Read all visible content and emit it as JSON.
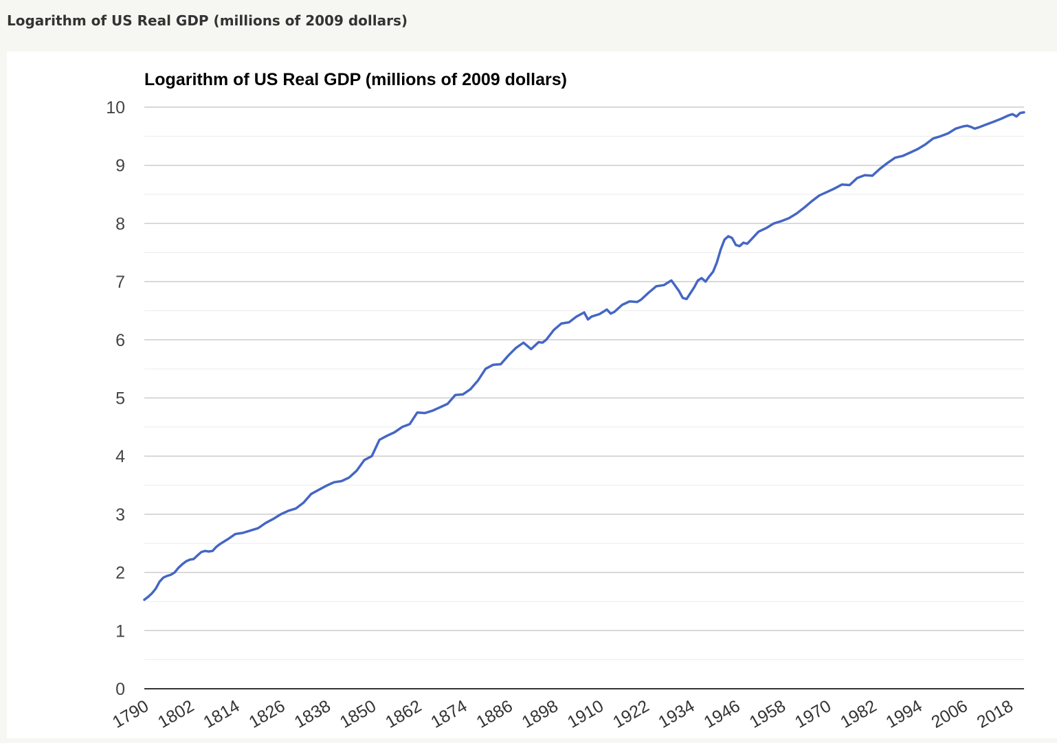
{
  "page": {
    "header_title": "Logarithm of US Real GDP (millions of 2009 dollars)"
  },
  "chart_data": {
    "type": "line",
    "title": "Logarithm of US Real GDP (millions of 2009 dollars)",
    "xlabel": "",
    "ylabel": "",
    "xlim": [
      1790,
      2022
    ],
    "ylim": [
      0,
      10
    ],
    "y_ticks": [
      0,
      1,
      2,
      3,
      4,
      5,
      6,
      7,
      8,
      9,
      10
    ],
    "y_tick_labels": [
      "0",
      "1",
      "2",
      "3",
      "4",
      "5",
      "6",
      "7",
      "8",
      "9",
      "10"
    ],
    "x_ticks": [
      1790,
      1802,
      1814,
      1826,
      1838,
      1850,
      1862,
      1874,
      1886,
      1898,
      1910,
      1922,
      1934,
      1946,
      1958,
      1970,
      1982,
      1994,
      2006,
      2018
    ],
    "x_tick_labels": [
      "1790",
      "1802",
      "1814",
      "1826",
      "1838",
      "1850",
      "1862",
      "1874",
      "1886",
      "1898",
      "1910",
      "1922",
      "1934",
      "1946",
      "1958",
      "1970",
      "1982",
      "1994",
      "2006",
      "2018"
    ],
    "grid": true,
    "minor_grid_step": 0.5,
    "legend": "none",
    "line_color": "#4466c4",
    "gridline_color": "#cccccc",
    "minor_gridline_color": "#ebebeb",
    "series": [
      {
        "x": [
          1790,
          1791,
          1792,
          1793,
          1794,
          1795,
          1796,
          1797,
          1798,
          1799,
          1800,
          1801,
          1802,
          1803,
          1804,
          1805,
          1806,
          1807,
          1808,
          1809,
          1810,
          1812,
          1814,
          1816,
          1818,
          1820,
          1822,
          1824,
          1826,
          1828,
          1830,
          1832,
          1834,
          1836,
          1838,
          1840,
          1842,
          1844,
          1846,
          1848,
          1850,
          1852,
          1854,
          1856,
          1858,
          1860,
          1862,
          1864,
          1866,
          1868,
          1870,
          1872,
          1874,
          1876,
          1878,
          1880,
          1882,
          1884,
          1886,
          1888,
          1890,
          1892,
          1894,
          1895,
          1896,
          1898,
          1900,
          1902,
          1904,
          1906,
          1907,
          1908,
          1910,
          1912,
          1913,
          1914,
          1916,
          1918,
          1920,
          1921,
          1923,
          1925,
          1927,
          1929,
          1930,
          1931,
          1932,
          1933,
          1934,
          1935,
          1936,
          1937,
          1938,
          1939,
          1940,
          1941,
          1942,
          1943,
          1944,
          1945,
          1946,
          1947,
          1948,
          1949,
          1950,
          1952,
          1954,
          1956,
          1958,
          1960,
          1962,
          1964,
          1966,
          1968,
          1970,
          1972,
          1974,
          1976,
          1978,
          1980,
          1982,
          1984,
          1986,
          1988,
          1990,
          1992,
          1994,
          1996,
          1998,
          2000,
          2002,
          2004,
          2006,
          2007,
          2008,
          2009,
          2010,
          2012,
          2014,
          2016,
          2018,
          2019,
          2020,
          2021,
          2022
        ],
        "y": [
          1.53,
          1.58,
          1.64,
          1.72,
          1.84,
          1.91,
          1.94,
          1.96,
          2.0,
          2.08,
          2.14,
          2.19,
          2.22,
          2.23,
          2.29,
          2.35,
          2.37,
          2.36,
          2.37,
          2.44,
          2.49,
          2.57,
          2.66,
          2.68,
          2.72,
          2.76,
          2.85,
          2.92,
          3.0,
          3.06,
          3.1,
          3.2,
          3.35,
          3.42,
          3.49,
          3.55,
          3.57,
          3.63,
          3.75,
          3.93,
          4.0,
          4.28,
          4.35,
          4.41,
          4.5,
          4.55,
          4.75,
          4.74,
          4.78,
          4.84,
          4.9,
          5.05,
          5.06,
          5.15,
          5.3,
          5.5,
          5.57,
          5.58,
          5.73,
          5.86,
          5.95,
          5.84,
          5.96,
          5.95,
          6.0,
          6.17,
          6.28,
          6.3,
          6.4,
          6.47,
          6.35,
          6.4,
          6.44,
          6.52,
          6.45,
          6.48,
          6.6,
          6.66,
          6.65,
          6.69,
          6.81,
          6.92,
          6.94,
          7.02,
          6.93,
          6.84,
          6.72,
          6.7,
          6.8,
          6.9,
          7.02,
          7.06,
          7.0,
          7.09,
          7.17,
          7.33,
          7.55,
          7.72,
          7.78,
          7.75,
          7.63,
          7.61,
          7.67,
          7.65,
          7.72,
          7.86,
          7.92,
          8.0,
          8.04,
          8.09,
          8.17,
          8.27,
          8.38,
          8.48,
          8.54,
          8.6,
          8.67,
          8.66,
          8.78,
          8.83,
          8.82,
          8.94,
          9.04,
          9.13,
          9.16,
          9.22,
          9.28,
          9.36,
          9.46,
          9.5,
          9.55,
          9.63,
          9.67,
          9.68,
          9.66,
          9.63,
          9.65,
          9.7,
          9.75,
          9.8,
          9.86,
          9.88,
          9.84,
          9.9,
          9.91
        ]
      }
    ]
  }
}
